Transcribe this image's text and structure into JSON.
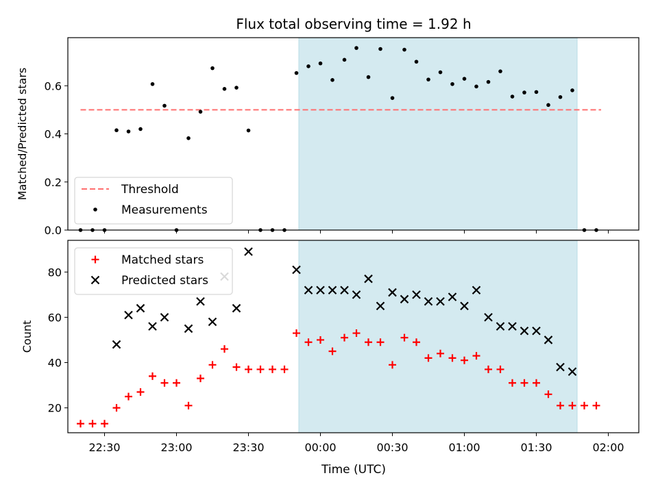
{
  "chart_data": {
    "title": "Flux total observing time = 1.92 h",
    "xlabel": "Time (UTC)",
    "x_ticks": [
      "22:30",
      "23:00",
      "23:30",
      "00:00",
      "00:30",
      "01:00",
      "01:30",
      "02:00"
    ],
    "shaded_interval": {
      "start": "23:51",
      "end": "01:47",
      "color": "#add8e6"
    },
    "colors": {
      "threshold": "#ff6f6f",
      "measurements": "#000000",
      "matched": "#ff0000",
      "predicted": "#000000",
      "shade": "#d4eaf0"
    },
    "panels": [
      {
        "type": "scatter",
        "ylabel": "Matched/Predicted stars",
        "ylim": [
          0,
          0.8
        ],
        "y_ticks": [
          "0.0",
          "0.2",
          "0.4",
          "0.6"
        ],
        "legend_position": "lower-left",
        "series": [
          {
            "name": "Threshold",
            "style": "dashed-line",
            "x": [
              "22:20",
              "01:57"
            ],
            "y": [
              0.5,
              0.5
            ]
          },
          {
            "name": "Measurements",
            "style": "dot",
            "x": [
              "22:20",
              "22:25",
              "22:30",
              "22:35",
              "22:40",
              "22:45",
              "22:50",
              "22:55",
              "23:00",
              "23:05",
              "23:10",
              "23:15",
              "23:20",
              "23:25",
              "23:30",
              "23:35",
              "23:40",
              "23:45",
              "23:50",
              "23:55",
              "00:00",
              "00:05",
              "00:10",
              "00:15",
              "00:20",
              "00:25",
              "00:30",
              "00:35",
              "00:40",
              "00:45",
              "00:50",
              "00:55",
              "01:00",
              "01:05",
              "01:10",
              "01:15",
              "01:20",
              "01:25",
              "01:30",
              "01:35",
              "01:40",
              "01:45",
              "01:50",
              "01:55"
            ],
            "y": [
              0,
              0,
              0,
              0.415,
              0.41,
              0.42,
              0.607,
              0.517,
              0,
              0.382,
              0.492,
              0.673,
              0.587,
              0.592,
              0.414,
              0,
              0,
              0,
              0.653,
              0.681,
              0.693,
              0.624,
              0.708,
              0.757,
              0.636,
              0.753,
              0.549,
              0.75,
              0.7,
              0.626,
              0.656,
              0.607,
              0.629,
              0.597,
              0.616,
              0.66,
              0.555,
              0.572,
              0.574,
              0.52,
              0.553,
              0.581,
              0,
              0
            ]
          }
        ]
      },
      {
        "type": "scatter",
        "ylabel": "Count",
        "ylim": [
          9,
          94
        ],
        "y_ticks": [
          "20",
          "40",
          "60",
          "80"
        ],
        "legend_position": "upper-left",
        "series": [
          {
            "name": "Matched stars",
            "marker": "plus",
            "x": [
              "22:20",
              "22:25",
              "22:30",
              "22:35",
              "22:40",
              "22:45",
              "22:50",
              "22:55",
              "23:00",
              "23:05",
              "23:10",
              "23:15",
              "23:20",
              "23:25",
              "23:30",
              "23:35",
              "23:40",
              "23:45",
              "23:50",
              "23:55",
              "00:00",
              "00:05",
              "00:10",
              "00:15",
              "00:20",
              "00:25",
              "00:30",
              "00:35",
              "00:40",
              "00:45",
              "00:50",
              "00:55",
              "01:00",
              "01:05",
              "01:10",
              "01:15",
              "01:20",
              "01:25",
              "01:30",
              "01:35",
              "01:40",
              "01:45",
              "01:50",
              "01:55"
            ],
            "y": [
              13,
              13,
              13,
              20,
              25,
              27,
              34,
              31,
              31,
              21,
              33,
              39,
              46,
              38,
              37,
              37,
              37,
              37,
              53,
              49,
              50,
              45,
              51,
              53,
              49,
              49,
              39,
              51,
              49,
              42,
              44,
              42,
              41,
              43,
              37,
              37,
              31,
              31,
              31,
              26,
              21,
              21,
              21,
              21
            ]
          },
          {
            "name": "Predicted stars",
            "marker": "x",
            "x": [
              "22:35",
              "22:40",
              "22:45",
              "22:50",
              "22:55",
              "23:05",
              "23:10",
              "23:15",
              "23:20",
              "23:25",
              "23:30",
              "23:50",
              "23:55",
              "00:00",
              "00:05",
              "00:10",
              "00:15",
              "00:20",
              "00:25",
              "00:30",
              "00:35",
              "00:40",
              "00:45",
              "00:50",
              "00:55",
              "01:00",
              "01:05",
              "01:10",
              "01:15",
              "01:20",
              "01:25",
              "01:30",
              "01:35",
              "01:40",
              "01:45"
            ],
            "y": [
              48,
              61,
              64,
              56,
              60,
              55,
              67,
              58,
              78,
              64,
              89,
              81,
              72,
              72,
              72,
              72,
              70,
              77,
              65,
              71,
              68,
              70,
              67,
              67,
              69,
              65,
              72,
              60,
              56,
              56,
              54,
              54,
              50,
              38,
              36
            ]
          }
        ]
      }
    ]
  }
}
